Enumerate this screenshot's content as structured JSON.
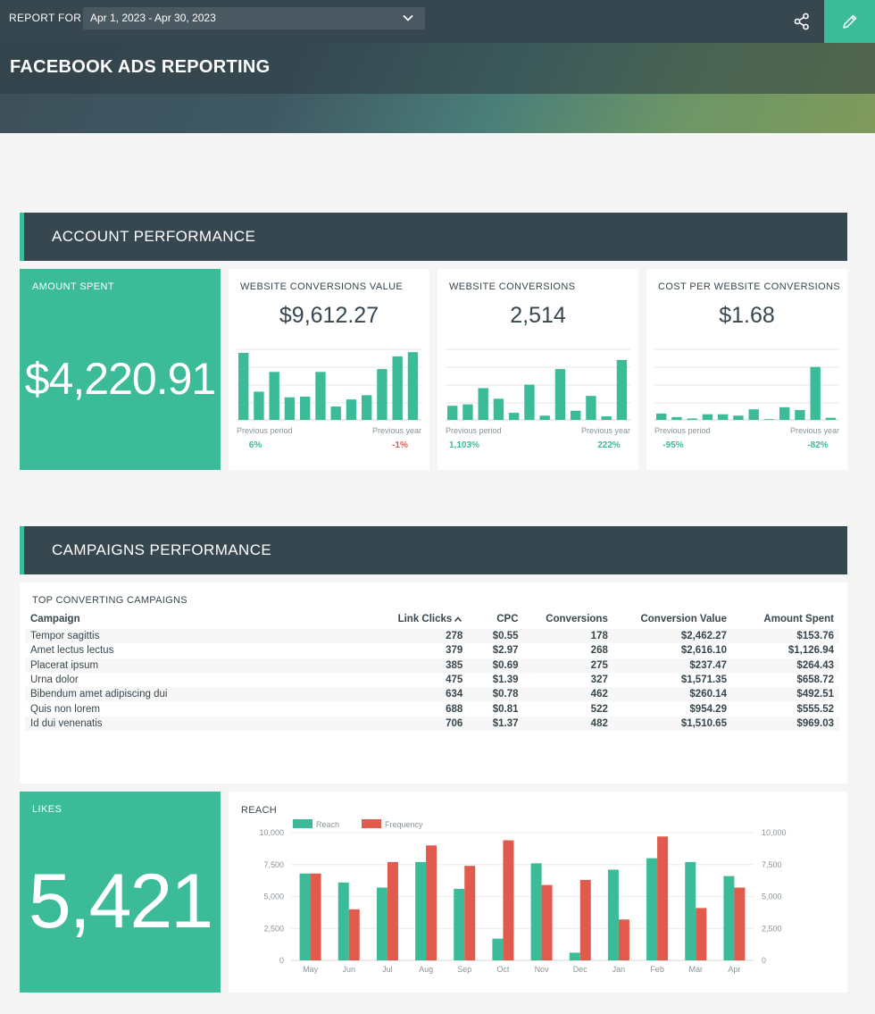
{
  "header": {
    "report_for_label": "REPORT FOR",
    "date_range": "Apr 1, 2023 - Apr 30, 2023",
    "title": "FACEBOOK ADS REPORTING"
  },
  "account_performance": {
    "heading": "ACCOUNT PERFORMANCE",
    "amount_spent": {
      "label": "AMOUNT SPENT",
      "value": "$4,220.91"
    },
    "cards": [
      {
        "label": "WEBSITE CONVERSIONS VALUE",
        "value": "$9,612.27",
        "previous_period_label": "Previous period",
        "previous_year_label": "Previous year",
        "previous_period_change": "6%",
        "previous_period_dir": "pos",
        "previous_year_change": "-1%",
        "previous_year_dir": "neg",
        "bars": [
          95,
          40,
          68,
          32,
          33,
          68,
          19,
          29,
          35,
          72,
          90,
          96
        ]
      },
      {
        "label": "WEBSITE CONVERSIONS",
        "value": "2,514",
        "previous_period_label": "Previous period",
        "previous_year_label": "Previous year",
        "previous_period_change": "1,103%",
        "previous_period_dir": "pos",
        "previous_year_change": "222%",
        "previous_year_dir": "pos",
        "bars": [
          20,
          22,
          45,
          30,
          10,
          50,
          6,
          72,
          13,
          34,
          5,
          85
        ]
      },
      {
        "label": "COST PER WEBSITE CONVERSIONS",
        "value": "$1.68",
        "previous_period_label": "Previous period",
        "previous_year_label": "Previous year",
        "previous_period_change": "-95%",
        "previous_period_dir": "pos",
        "previous_year_change": "-82%",
        "previous_year_dir": "pos",
        "bars": [
          9,
          4,
          2,
          8,
          8,
          6,
          15,
          0,
          18,
          14,
          75,
          3
        ]
      }
    ]
  },
  "campaigns_performance": {
    "heading": "CAMPAIGNS PERFORMANCE",
    "table_title": "TOP CONVERTING CAMPAIGNS",
    "columns": [
      "Campaign",
      "Link Clicks",
      "CPC",
      "Conversions",
      "Conversion Value",
      "Amount Spent"
    ],
    "rows": [
      [
        "Tempor sagittis",
        "278",
        "$0.55",
        "178",
        "$2,462.27",
        "$153.76"
      ],
      [
        "Amet lectus lectus",
        "379",
        "$2.97",
        "268",
        "$2,616.10",
        "$1,126.94"
      ],
      [
        "Placerat ipsum",
        "385",
        "$0.69",
        "275",
        "$237.47",
        "$264.43"
      ],
      [
        "Urna dolor",
        "475",
        "$1.39",
        "327",
        "$1,571.35",
        "$658.72"
      ],
      [
        "Bibendum amet adipiscing dui",
        "634",
        "$0.78",
        "462",
        "$260.14",
        "$492.51"
      ],
      [
        "Quis non lorem",
        "688",
        "$0.81",
        "522",
        "$954.29",
        "$555.52"
      ],
      [
        "Id dui venenatis",
        "706",
        "$1.37",
        "482",
        "$1,510.65",
        "$969.03"
      ]
    ]
  },
  "likes": {
    "label": "LIKES",
    "value": "5,421"
  },
  "chart_data": {
    "type": "bar",
    "title": "REACH",
    "categories": [
      "May",
      "Jun",
      "Jul",
      "Aug",
      "Sep",
      "Oct",
      "Nov",
      "Dec",
      "Jan",
      "Feb",
      "Mar",
      "Apr"
    ],
    "series": [
      {
        "name": "Reach",
        "color": "#3cbb98",
        "values": [
          6800,
          6100,
          5700,
          7700,
          5600,
          1700,
          7600,
          600,
          7100,
          8000,
          7700,
          6600
        ]
      },
      {
        "name": "Frequency",
        "color": "#e05a4d",
        "values": [
          6800,
          4000,
          7700,
          9000,
          7400,
          9400,
          5900,
          6300,
          3200,
          9700,
          4100,
          5700
        ]
      }
    ],
    "ylim": [
      0,
      10000
    ],
    "y_ticks": [
      "0",
      "2,500",
      "5,000",
      "7,500",
      "10,000"
    ],
    "legend": "top-left",
    "grid": true
  }
}
